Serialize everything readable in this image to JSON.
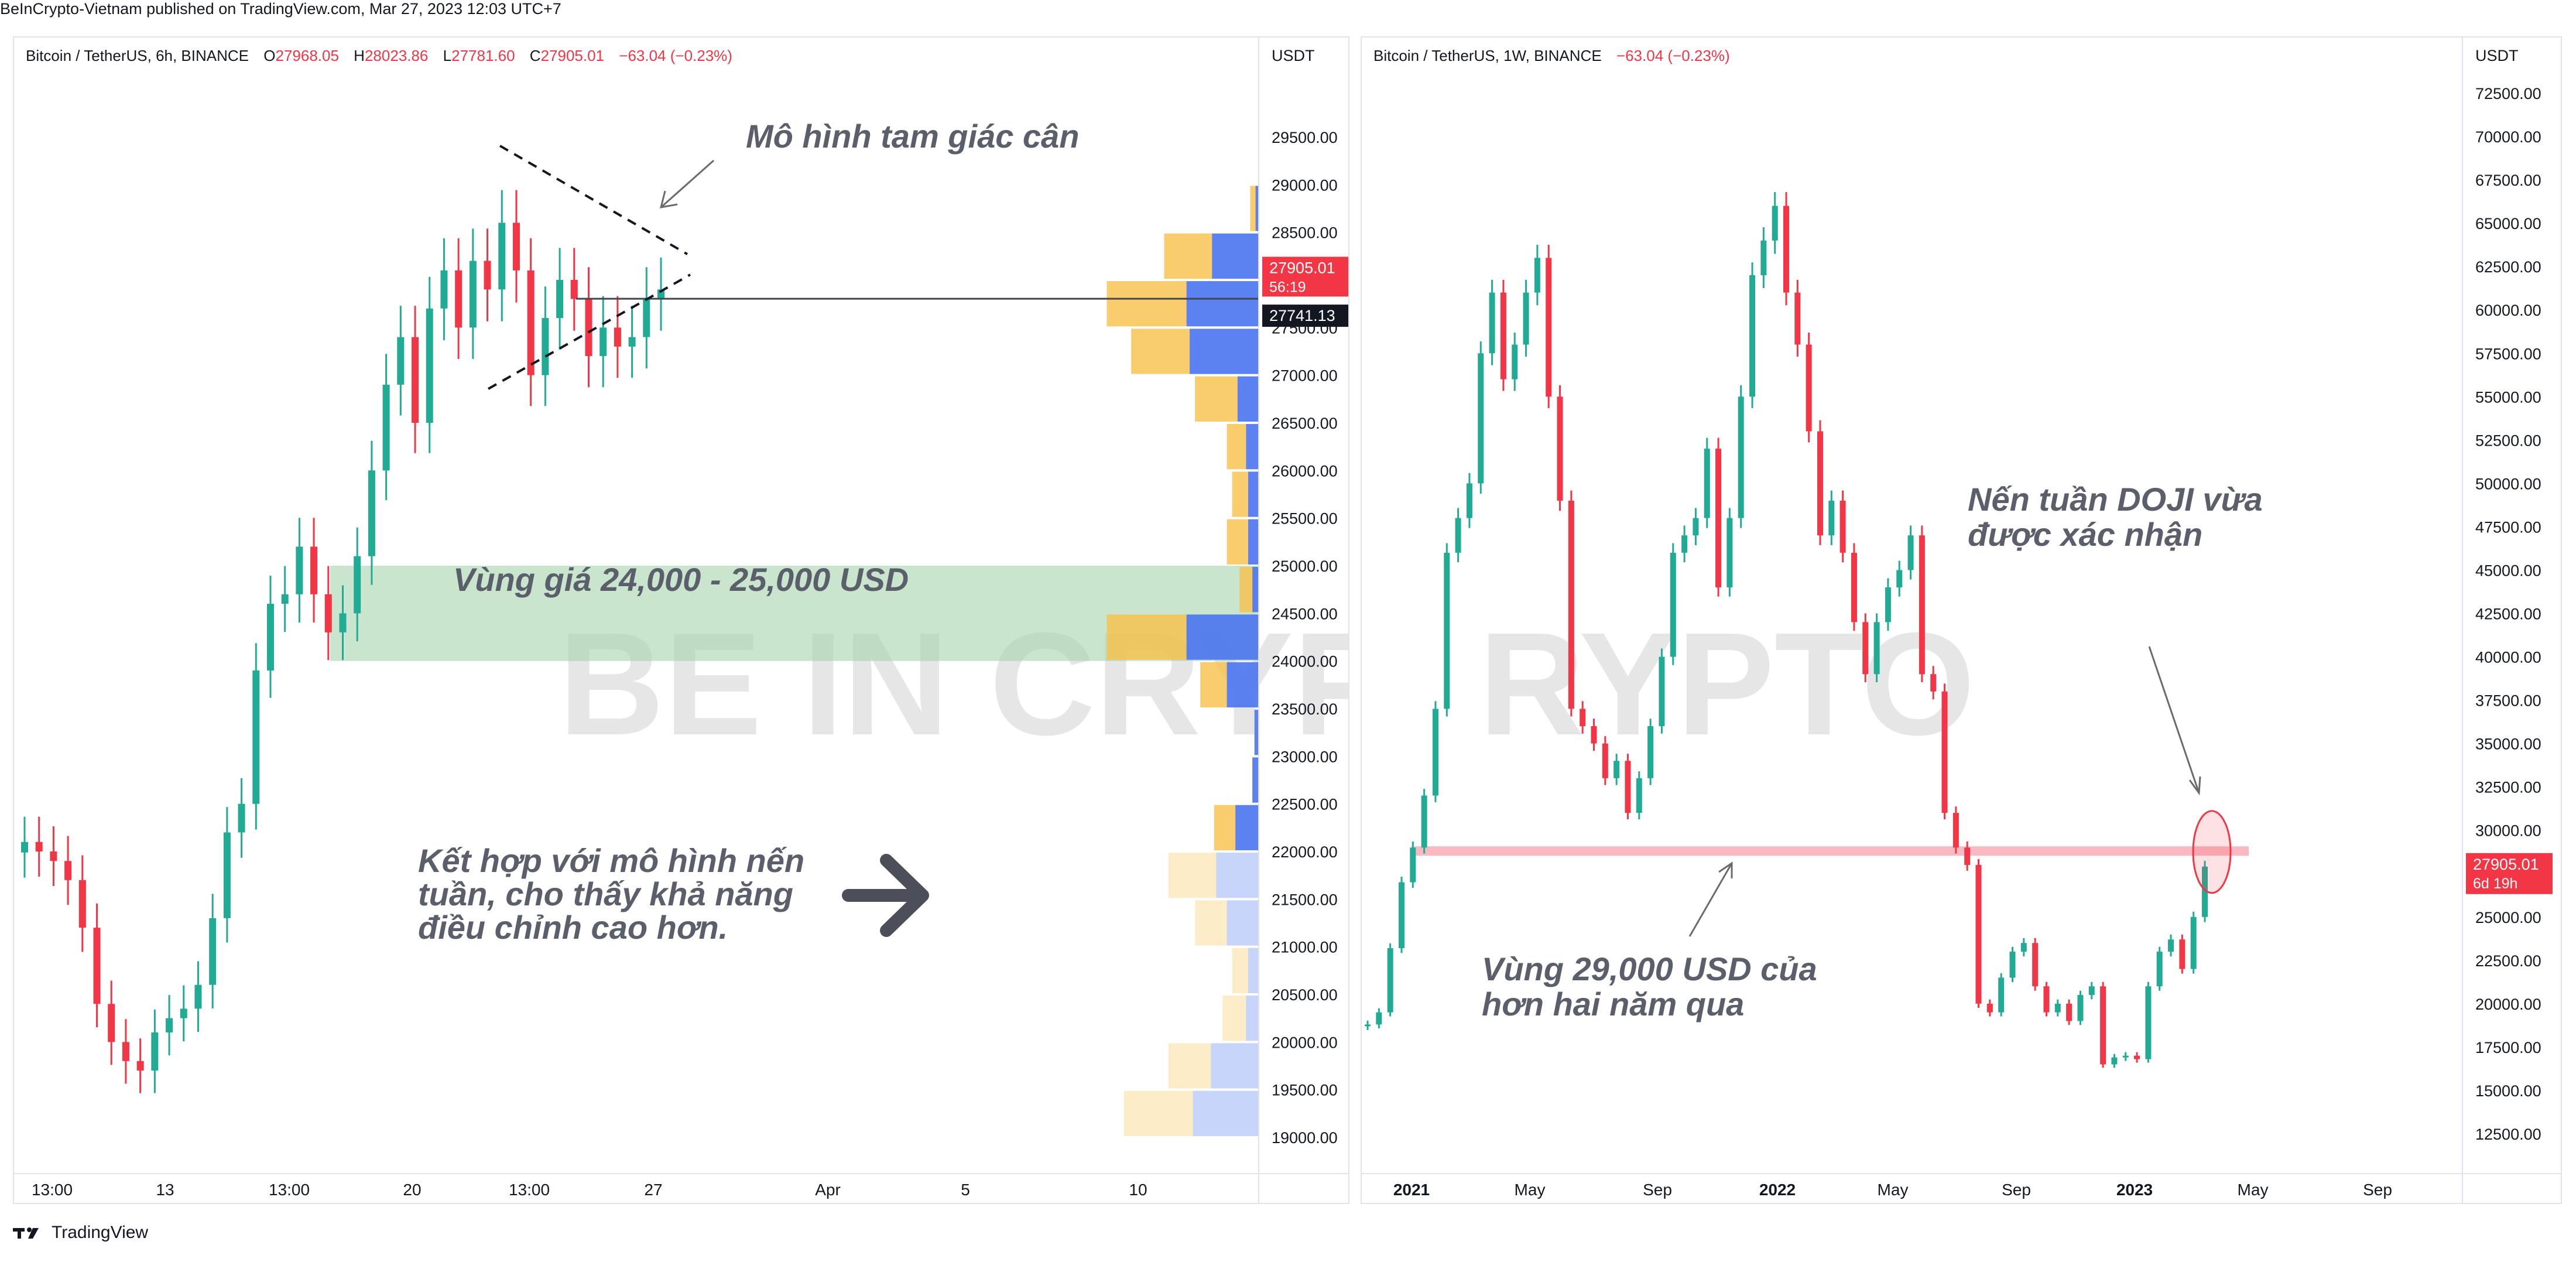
{
  "publisher": "BeInCrypto-Vietnam published on TradingView.com, Mar 27, 2023 12:03 UTC+7",
  "brand": {
    "name": "TradingView",
    "logo": "tradingview-logo-icon"
  },
  "watermark": "BE IN CRYPTO",
  "colors": {
    "up": "#22ab94",
    "down": "#f23645",
    "vp_up": "#f7c04a",
    "vp_down": "#4a74f0",
    "zone": "#a7d3ae",
    "support": "#f7a8b3"
  },
  "left": {
    "legend": {
      "symbol": "Bitcoin / TetherUS, 6h, BINANCE",
      "o_label": "O",
      "o": "27968.05",
      "h_label": "H",
      "h": "28023.86",
      "l_label": "L",
      "l": "27781.60",
      "c_label": "C",
      "c": "27905.01",
      "change": "−63.04 (−0.23%)"
    },
    "axis_unit": "USDT",
    "price_labels": [
      {
        "value": 27905.01,
        "text": "27905.01",
        "sub": "56:19",
        "color": "#f23645"
      },
      {
        "value": 27741.13,
        "text": "27741.13",
        "color": "#131722"
      }
    ],
    "annotations": {
      "triangle": "Mô hình tam giác cân",
      "zone": "Vùng giá 24,000 - 25,000 USD",
      "combo": [
        "Kết hợp với mô hình nến",
        "tuần, cho thấy khả năng",
        "điều chỉnh cao hơn."
      ]
    }
  },
  "right": {
    "legend": {
      "symbol": "Bitcoin / TetherUS, 1W, BINANCE",
      "change": "−63.04 (−0.23%)"
    },
    "axis_unit": "USDT",
    "price_labels": [
      {
        "value": 27905.01,
        "text": "27905.01",
        "sub": "6d 19h",
        "color": "#f23645"
      }
    ],
    "annotations": {
      "doji": [
        "Nến tuần DOJI vừa",
        "được xác nhận"
      ],
      "support": [
        "Vùng 29,000 USD của",
        "hơn hai năm qua"
      ]
    }
  },
  "chart_data": [
    {
      "type": "candlestick",
      "title": "Bitcoin / TetherUS, 6h, BINANCE",
      "ylim": [
        18600,
        29900
      ],
      "y_ticks": [
        19000,
        19500,
        20000,
        20500,
        21000,
        21500,
        22000,
        22500,
        23000,
        23500,
        24000,
        24500,
        25000,
        25500,
        26000,
        26500,
        27000,
        27500,
        28000,
        28500,
        29000,
        29500
      ],
      "x_ticks": [
        "13:00",
        "13",
        "13:00",
        "20",
        "13:00",
        "27",
        "Apr",
        "5",
        "10"
      ],
      "approx_closes": [
        22100,
        22000,
        21900,
        21700,
        21200,
        20400,
        20000,
        19800,
        19700,
        20100,
        20250,
        20350,
        20600,
        21300,
        22200,
        22500,
        23900,
        24600,
        24700,
        25200,
        24700,
        24300,
        24500,
        25100,
        26000,
        26900,
        27400,
        26500,
        27700,
        28100,
        27500,
        28200,
        27900,
        28600,
        28100,
        27000,
        27600,
        28000,
        27800,
        27200,
        27500,
        27300,
        27400,
        27800,
        27900
      ],
      "volume_profile": [
        {
          "price": 28750,
          "up": 0.05,
          "down": 0.03
        },
        {
          "price": 28250,
          "up": 0.45,
          "down": 0.44
        },
        {
          "price": 27750,
          "up": 0.75,
          "down": 0.68
        },
        {
          "price": 27250,
          "up": 0.55,
          "down": 0.65
        },
        {
          "price": 26750,
          "up": 0.4,
          "down": 0.2
        },
        {
          "price": 26250,
          "up": 0.18,
          "down": 0.12
        },
        {
          "price": 25750,
          "up": 0.15,
          "down": 0.1
        },
        {
          "price": 25250,
          "up": 0.2,
          "down": 0.1
        },
        {
          "price": 24750,
          "up": 0.12,
          "down": 0.06
        },
        {
          "price": 24250,
          "up": 0.75,
          "down": 0.68
        },
        {
          "price": 23750,
          "up": 0.25,
          "down": 0.3
        },
        {
          "price": 23250,
          "up": 0.0,
          "down": 0.04
        },
        {
          "price": 22750,
          "up": 0.0,
          "down": 0.06
        },
        {
          "price": 22250,
          "up": 0.2,
          "down": 0.22
        },
        {
          "price": 21750,
          "up": 0.45,
          "down": 0.4
        },
        {
          "price": 21250,
          "up": 0.3,
          "down": 0.3
        },
        {
          "price": 20750,
          "up": 0.15,
          "down": 0.1
        },
        {
          "price": 20250,
          "up": 0.22,
          "down": 0.12
        },
        {
          "price": 19750,
          "up": 0.4,
          "down": 0.45
        },
        {
          "price": 19250,
          "up": 0.65,
          "down": 0.62
        }
      ],
      "zone": [
        24000,
        25000
      ],
      "last_price": 27905.01,
      "line_price": 27741.13
    },
    {
      "type": "candlestick",
      "title": "Bitcoin / TetherUS, 1W, BINANCE",
      "ylim": [
        10500,
        75000
      ],
      "y_ticks": [
        12500,
        15000,
        17500,
        20000,
        22500,
        25000,
        27500,
        30000,
        32500,
        35000,
        37500,
        40000,
        42500,
        45000,
        47500,
        50000,
        52500,
        55000,
        57500,
        60000,
        62500,
        65000,
        67500,
        70000,
        72500
      ],
      "x_ticks": [
        "2021",
        "May",
        "Sep",
        "2022",
        "May",
        "Sep",
        "2023",
        "May",
        "Sep"
      ],
      "approx_closes": [
        18800,
        19500,
        23200,
        27000,
        29000,
        32000,
        37000,
        46000,
        48000,
        50000,
        57500,
        61000,
        56000,
        58000,
        61000,
        63000,
        55000,
        49000,
        37000,
        36000,
        35000,
        33000,
        34000,
        31000,
        33000,
        36000,
        40000,
        46000,
        47000,
        48000,
        52000,
        44000,
        48000,
        55000,
        62000,
        64000,
        66000,
        61000,
        58000,
        53000,
        47000,
        49000,
        46000,
        42000,
        39000,
        42000,
        44000,
        45000,
        47000,
        39000,
        38000,
        31000,
        29000,
        28000,
        20000,
        19500,
        21500,
        23000,
        23500,
        21000,
        19500,
        20000,
        19000,
        20500,
        21000,
        16500,
        16900,
        17000,
        16800,
        21000,
        23000,
        23700,
        22000,
        25000,
        27905
      ],
      "support_price": 28800,
      "last_price": 27905.01
    }
  ]
}
